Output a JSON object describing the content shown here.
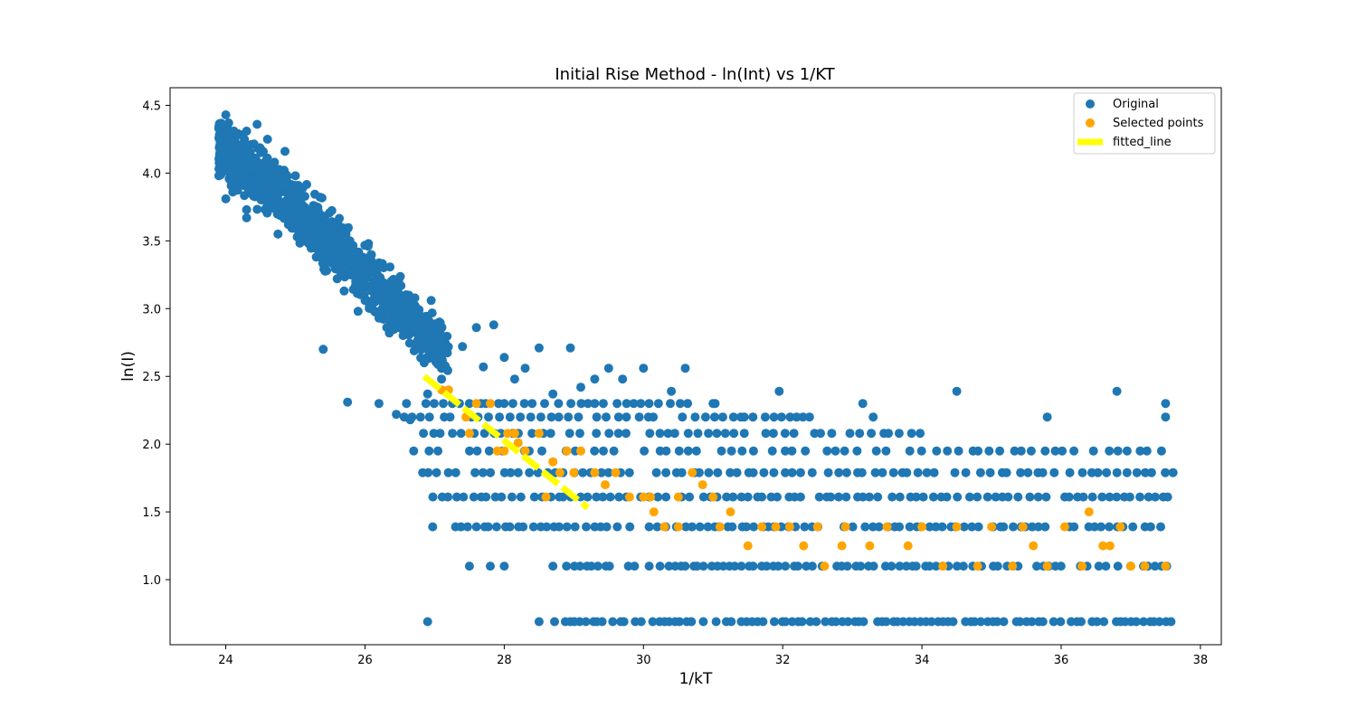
{
  "chart_data": {
    "type": "scatter",
    "title": "Initial Rise Method - ln(Int) vs 1/KT",
    "xlabel": "1/kT",
    "ylabel": "ln(I)",
    "xlim": [
      23.2,
      38.3
    ],
    "ylim": [
      0.52,
      4.63
    ],
    "x_ticks": [
      24,
      26,
      28,
      30,
      32,
      34,
      36,
      38
    ],
    "y_ticks": [
      1.0,
      1.5,
      2.0,
      2.5,
      3.0,
      3.5,
      4.0,
      4.5
    ],
    "grid": false,
    "legend_position": "top-right",
    "series": [
      {
        "name": "Original",
        "kind": "scatter",
        "color": "#1f77b4",
        "points": [
          [
            23.95,
            4.36
          ],
          [
            24.05,
            4.22
          ],
          [
            24.0,
            4.05
          ],
          [
            23.9,
            3.98
          ],
          [
            24.1,
            3.86
          ],
          [
            24.0,
            3.81
          ],
          [
            24.0,
            4.43
          ],
          [
            24.3,
            4.31
          ],
          [
            24.45,
            4.36
          ],
          [
            24.2,
            4.12
          ],
          [
            24.35,
            4.03
          ],
          [
            24.5,
            4.18
          ],
          [
            24.25,
            3.92
          ],
          [
            24.4,
            3.83
          ],
          [
            24.3,
            3.73
          ],
          [
            24.3,
            3.67
          ],
          [
            24.55,
            3.98
          ],
          [
            24.6,
            4.25
          ],
          [
            24.7,
            4.08
          ],
          [
            24.8,
            3.9
          ],
          [
            24.7,
            3.78
          ],
          [
            24.9,
            3.62
          ],
          [
            24.75,
            3.55
          ],
          [
            24.95,
            3.85
          ],
          [
            25.0,
            3.98
          ],
          [
            24.85,
            4.16
          ],
          [
            25.1,
            3.75
          ],
          [
            25.15,
            3.6
          ],
          [
            25.25,
            3.47
          ],
          [
            25.35,
            3.53
          ],
          [
            25.3,
            3.38
          ],
          [
            25.45,
            3.28
          ],
          [
            25.5,
            3.4
          ],
          [
            25.6,
            3.22
          ],
          [
            25.7,
            3.13
          ],
          [
            25.65,
            3.32
          ],
          [
            25.85,
            3.24
          ],
          [
            26.0,
            3.06
          ],
          [
            26.05,
            3.48
          ],
          [
            25.9,
            2.98
          ],
          [
            26.2,
            2.93
          ],
          [
            26.35,
            2.82
          ],
          [
            26.45,
            3.18
          ],
          [
            26.55,
            2.97
          ],
          [
            26.7,
            2.85
          ],
          [
            26.85,
            2.78
          ],
          [
            26.95,
            3.06
          ],
          [
            27.1,
            2.67
          ],
          [
            25.4,
            2.7
          ],
          [
            25.75,
            2.31
          ],
          [
            26.2,
            2.3
          ],
          [
            26.45,
            2.22
          ],
          [
            26.65,
            2.18
          ],
          [
            26.7,
            1.95
          ],
          [
            26.9,
            2.37
          ],
          [
            27.1,
            2.48
          ],
          [
            27.4,
            2.72
          ],
          [
            27.6,
            2.86
          ],
          [
            27.7,
            2.57
          ],
          [
            27.85,
            2.88
          ],
          [
            28.0,
            2.64
          ],
          [
            28.15,
            2.48
          ],
          [
            28.3,
            2.56
          ],
          [
            28.5,
            2.71
          ],
          [
            28.7,
            2.37
          ],
          [
            28.95,
            2.71
          ],
          [
            29.1,
            2.42
          ],
          [
            29.3,
            2.48
          ],
          [
            29.5,
            2.56
          ],
          [
            29.7,
            2.48
          ],
          [
            30.0,
            2.56
          ],
          [
            30.4,
            2.39
          ],
          [
            30.6,
            2.56
          ],
          [
            31.0,
            2.3
          ],
          [
            31.4,
            2.2
          ],
          [
            31.95,
            2.39
          ],
          [
            32.2,
            2.2
          ],
          [
            33.15,
            2.3
          ],
          [
            33.3,
            2.2
          ],
          [
            34.5,
            2.39
          ],
          [
            35.8,
            2.2
          ],
          [
            36.8,
            2.39
          ],
          [
            37.5,
            2.3
          ],
          [
            37.5,
            2.2
          ],
          [
            26.9,
            0.69
          ],
          [
            27.5,
            1.1
          ],
          [
            27.8,
            1.1
          ],
          [
            28.5,
            0.69
          ],
          [
            28.0,
            1.1
          ],
          [
            28.7,
            1.1
          ]
        ],
        "levels": [
          {
            "y": 2.3,
            "x_from": 26.6,
            "x_to": 31.1,
            "step": 0.13
          },
          {
            "y": 2.2,
            "x_from": 26.4,
            "x_to": 32.5,
            "step": 0.14
          },
          {
            "y": 2.08,
            "x_from": 26.7,
            "x_to": 34.0,
            "step": 0.14
          },
          {
            "y": 1.95,
            "x_from": 26.9,
            "x_to": 37.6,
            "step": 0.15
          },
          {
            "y": 1.79,
            "x_from": 26.8,
            "x_to": 37.6,
            "step": 0.13
          },
          {
            "y": 1.61,
            "x_from": 27.0,
            "x_to": 37.6,
            "step": 0.11
          },
          {
            "y": 1.39,
            "x_from": 27.0,
            "x_to": 37.6,
            "step": 0.1
          },
          {
            "y": 1.1,
            "x_from": 28.9,
            "x_to": 37.6,
            "step": 0.09
          },
          {
            "y": 0.69,
            "x_from": 28.7,
            "x_to": 37.6,
            "step": 0.08
          }
        ]
      },
      {
        "name": "Selected points",
        "kind": "scatter",
        "color": "#ffa500",
        "points": [
          [
            27.1,
            2.4
          ],
          [
            27.2,
            2.4
          ],
          [
            27.45,
            2.2
          ],
          [
            27.5,
            2.08
          ],
          [
            27.6,
            2.3
          ],
          [
            27.8,
            2.3
          ],
          [
            27.9,
            1.95
          ],
          [
            28.0,
            1.95
          ],
          [
            28.05,
            2.08
          ],
          [
            28.15,
            2.08
          ],
          [
            28.2,
            2.01
          ],
          [
            28.3,
            1.95
          ],
          [
            28.5,
            2.08
          ],
          [
            28.6,
            1.61
          ],
          [
            28.7,
            1.87
          ],
          [
            28.8,
            1.79
          ],
          [
            28.9,
            1.95
          ],
          [
            29.0,
            1.79
          ],
          [
            29.1,
            1.95
          ],
          [
            29.3,
            1.79
          ],
          [
            29.45,
            1.7
          ],
          [
            29.6,
            1.79
          ],
          [
            29.8,
            1.61
          ],
          [
            30.0,
            1.61
          ],
          [
            30.1,
            1.61
          ],
          [
            30.15,
            1.5
          ],
          [
            30.3,
            1.39
          ],
          [
            30.5,
            1.39
          ],
          [
            30.5,
            1.61
          ],
          [
            30.7,
            1.79
          ],
          [
            30.85,
            1.7
          ],
          [
            31.0,
            1.61
          ],
          [
            31.1,
            1.39
          ],
          [
            31.25,
            1.5
          ],
          [
            31.5,
            1.25
          ],
          [
            31.7,
            1.39
          ],
          [
            31.9,
            1.39
          ],
          [
            32.1,
            1.39
          ],
          [
            32.3,
            1.25
          ],
          [
            32.5,
            1.39
          ],
          [
            32.6,
            1.1
          ],
          [
            32.85,
            1.25
          ],
          [
            32.9,
            1.39
          ],
          [
            33.25,
            1.25
          ],
          [
            33.5,
            1.39
          ],
          [
            33.8,
            1.25
          ],
          [
            34.0,
            1.39
          ],
          [
            34.3,
            1.1
          ],
          [
            34.5,
            1.39
          ],
          [
            34.8,
            1.1
          ],
          [
            35.0,
            1.39
          ],
          [
            35.3,
            1.1
          ],
          [
            35.45,
            1.39
          ],
          [
            35.6,
            1.25
          ],
          [
            35.8,
            1.1
          ],
          [
            36.05,
            1.39
          ],
          [
            36.3,
            1.1
          ],
          [
            36.4,
            1.5
          ],
          [
            36.6,
            1.25
          ],
          [
            36.7,
            1.25
          ],
          [
            36.85,
            1.39
          ],
          [
            37.0,
            1.1
          ],
          [
            37.2,
            1.1
          ],
          [
            37.5,
            1.1
          ]
        ]
      },
      {
        "name": "fitted_line",
        "kind": "line",
        "color": "#ffff00",
        "line_width": 7,
        "x": [
          26.85,
          29.2
        ],
        "y": [
          2.5,
          1.53
        ]
      }
    ]
  }
}
